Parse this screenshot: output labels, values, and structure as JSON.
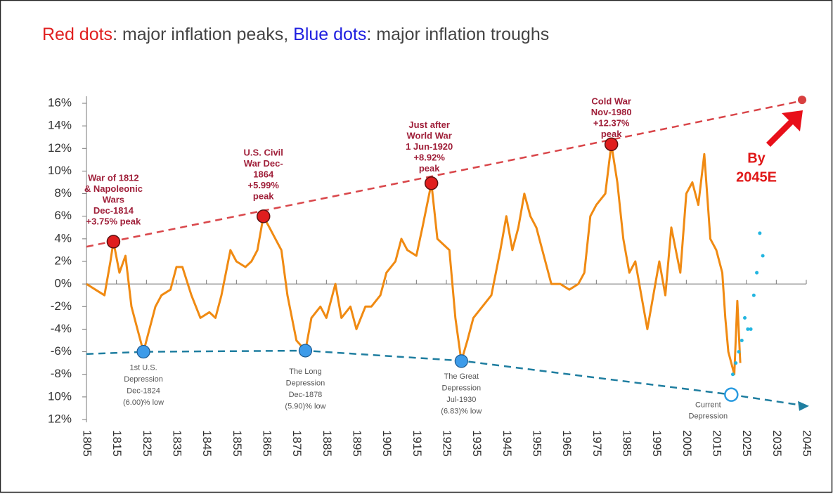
{
  "chart_data": {
    "type": "line",
    "title_parts": [
      {
        "text": "Red dots",
        "color": "#e02020"
      },
      {
        "text": ": major inflation peaks, ",
        "color": "#444444"
      },
      {
        "text": "Blue dots",
        "color": "#2020e0"
      },
      {
        "text": ": major inflation troughs",
        "color": "#444444"
      }
    ],
    "xlim": [
      1805,
      2045
    ],
    "xticks": [
      1805,
      1815,
      1825,
      1835,
      1845,
      1855,
      1865,
      1875,
      1885,
      1895,
      1905,
      1915,
      1925,
      1935,
      1945,
      1955,
      1965,
      1975,
      1985,
      1995,
      2005,
      2015,
      2025,
      2035,
      2045
    ],
    "ylim": [
      -12,
      16
    ],
    "yticks": [
      {
        "value": 16,
        "label": "16%"
      },
      {
        "value": 14,
        "label": "14%"
      },
      {
        "value": 12,
        "label": "12%"
      },
      {
        "value": 10,
        "label": "10%"
      },
      {
        "value": 8,
        "label": "8%"
      },
      {
        "value": 6,
        "label": "6%"
      },
      {
        "value": 4,
        "label": "4%"
      },
      {
        "value": 2,
        "label": "2%"
      },
      {
        "value": 0,
        "label": "0%"
      },
      {
        "value": -2,
        "label": "-2%"
      },
      {
        "value": -4,
        "label": "-4%"
      },
      {
        "value": -6,
        "label": "-6%"
      },
      {
        "value": -8,
        "label": "-8%"
      },
      {
        "value": -10,
        "label": "10%"
      },
      {
        "value": -12,
        "label": "12%"
      }
    ],
    "x": [
      1805,
      1808,
      1811,
      1813,
      1814,
      1816,
      1818,
      1820,
      1822,
      1824,
      1826,
      1828,
      1830,
      1833,
      1835,
      1837,
      1840,
      1843,
      1846,
      1848,
      1850,
      1853,
      1855,
      1858,
      1860,
      1862,
      1864,
      1866,
      1868,
      1870,
      1872,
      1875,
      1878,
      1880,
      1883,
      1885,
      1888,
      1890,
      1893,
      1895,
      1898,
      1900,
      1903,
      1905,
      1908,
      1910,
      1912,
      1915,
      1917,
      1920,
      1922,
      1924,
      1926,
      1928,
      1930,
      1932,
      1934,
      1937,
      1940,
      1943,
      1945,
      1947,
      1949,
      1951,
      1953,
      1955,
      1957,
      1960,
      1963,
      1966,
      1969,
      1971,
      1973,
      1975,
      1978,
      1980,
      1982,
      1984,
      1986,
      1988,
      1990,
      1992,
      1994,
      1996,
      1998,
      2000,
      2003,
      2005,
      2007,
      2009,
      2011,
      2013,
      2015,
      2017,
      2018,
      2019,
      2021,
      2022,
      2023
    ],
    "series": [
      {
        "color": "#f08a12",
        "values": [
          0,
          -0.5,
          -1,
          2,
          3.75,
          1,
          2.5,
          -2,
          -4,
          -6,
          -4,
          -2,
          -1,
          -0.5,
          1.5,
          1.5,
          -1,
          -3,
          -2.5,
          -3,
          -1,
          3,
          2,
          1.5,
          2,
          3,
          5.99,
          5,
          4,
          3,
          -1,
          -5,
          -5.9,
          -3,
          -2,
          -3,
          0,
          -3,
          -2,
          -4,
          -2,
          -2,
          -1,
          1,
          2,
          4,
          3,
          2.5,
          5,
          8.92,
          4,
          3.5,
          3,
          -3,
          -6.83,
          -5,
          -3,
          -2,
          -1,
          3,
          6,
          3,
          5,
          8,
          6,
          5,
          3,
          0,
          0,
          -0.5,
          0,
          1,
          6,
          7,
          8,
          12.37,
          9,
          4,
          1,
          2,
          -1,
          -4,
          -1,
          2,
          -1,
          5,
          1,
          8,
          9,
          7,
          11.5,
          4,
          3,
          1,
          -3,
          -6,
          -8,
          -1.5,
          -7
        ]
      }
    ],
    "projection": {
      "color": "#22b5e0",
      "x": [
        2020.5,
        2021.5,
        2022.5,
        2023.5,
        2024.5,
        2025.5,
        2026.5,
        2027.5,
        2028.5,
        2029.5,
        2030.5
      ],
      "values": [
        -8,
        -7,
        -6,
        -5,
        -3,
        -4,
        -4,
        -1,
        1,
        4.5,
        2.5
      ]
    },
    "peak_trend": {
      "color": "#d9464a",
      "x": [
        1805,
        2045
      ],
      "values": [
        3.3,
        16.3
      ]
    },
    "trough_trend": {
      "color": "#1f7ea0",
      "x": [
        1805,
        1825,
        1878,
        1930,
        2020,
        2045
      ],
      "values": [
        -6.2,
        -6,
        -5.9,
        -6.8,
        -9.8,
        -10.8
      ]
    },
    "peaks": [
      {
        "x": 1814,
        "value": 3.75,
        "label": [
          "War of 1812",
          "& Napoleonic",
          "Wars",
          "Dec-1814",
          "+3.75% peak"
        ]
      },
      {
        "x": 1864,
        "value": 5.99,
        "label": [
          "U.S. Civil",
          "War Dec-",
          "1864",
          "+5.99%",
          "peak"
        ]
      },
      {
        "x": 1920,
        "value": 8.92,
        "label": [
          "Just after",
          "World War",
          "1 Jun-1920",
          "+8.92%",
          "peak"
        ]
      },
      {
        "x": 1980,
        "value": 12.37,
        "label": [
          "Cold War",
          "Nov-1980",
          "+12.37%",
          "peak"
        ]
      }
    ],
    "troughs": [
      {
        "x": 1824,
        "value": -6,
        "label": [
          "1st U.S.",
          "Depression",
          "Dec-1824",
          "(6.00)% low"
        ]
      },
      {
        "x": 1878,
        "value": -5.9,
        "label": [
          "The Long",
          "Depression",
          "Dec-1878",
          "(5.90)% low"
        ]
      },
      {
        "x": 1930,
        "value": -6.83,
        "label": [
          "The Great",
          "Depression",
          "Jul-1930",
          "(6.83)% low"
        ]
      }
    ],
    "current": {
      "x": 2020,
      "value": -9.8,
      "label": [
        "Current",
        "Depression"
      ]
    },
    "forecast": {
      "x": 2045,
      "value": 16.3,
      "label": [
        "By",
        "2045E"
      ]
    }
  }
}
